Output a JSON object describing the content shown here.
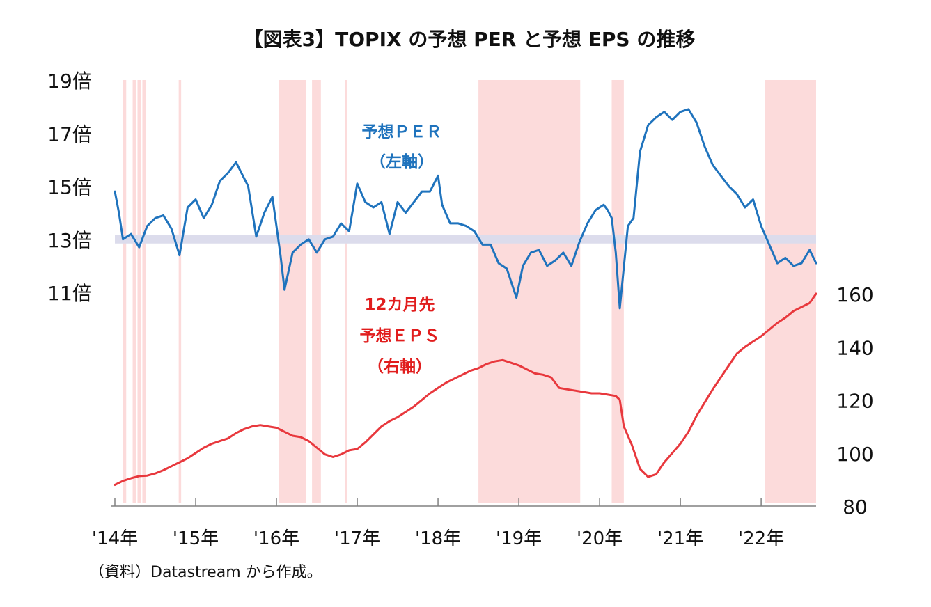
{
  "chart_data": {
    "type": "line",
    "title": "【図表3】TOPIX の予想 PER と予想 EPS の推移",
    "source_note": "（資料）Datastream から作成。",
    "x_tick_labels": [
      "'14年",
      "'15年",
      "'16年",
      "'17年",
      "'18年",
      "'19年",
      "'20年",
      "'21年",
      "'22年"
    ],
    "left_axis": {
      "ticks": [
        19,
        17,
        15,
        13,
        11
      ],
      "labels": [
        "19倍",
        "17倍",
        "15倍",
        "13倍",
        "11倍"
      ],
      "ylim": [
        11,
        19
      ],
      "reference_line": 13
    },
    "right_axis": {
      "ticks": [
        160,
        140,
        120,
        100,
        80
      ],
      "labels": [
        "160",
        "140",
        "120",
        "100",
        "80"
      ],
      "ylim": [
        80,
        160
      ]
    },
    "grid": false,
    "series": [
      {
        "name": "予想ＰＥＲ（左軸）",
        "label_lines": [
          "予想ＰＥＲ",
          "（左軸）"
        ],
        "axis": "left",
        "color": "#1f73bd",
        "x": [
          2014.0,
          2014.05,
          2014.1,
          2014.2,
          2014.3,
          2014.4,
          2014.5,
          2014.6,
          2014.7,
          2014.8,
          2014.9,
          2015.0,
          2015.1,
          2015.2,
          2015.3,
          2015.4,
          2015.5,
          2015.6,
          2015.65,
          2015.75,
          2015.85,
          2015.95,
          2016.05,
          2016.1,
          2016.2,
          2016.3,
          2016.4,
          2016.5,
          2016.6,
          2016.7,
          2016.8,
          2016.9,
          2017.0,
          2017.1,
          2017.2,
          2017.3,
          2017.4,
          2017.5,
          2017.6,
          2017.7,
          2017.8,
          2017.9,
          2018.0,
          2018.05,
          2018.15,
          2018.25,
          2018.35,
          2018.45,
          2018.55,
          2018.65,
          2018.75,
          2018.85,
          2018.97,
          2019.05,
          2019.15,
          2019.25,
          2019.35,
          2019.45,
          2019.55,
          2019.65,
          2019.75,
          2019.85,
          2019.95,
          2020.05,
          2020.1,
          2020.15,
          2020.2,
          2020.25,
          2020.35,
          2020.42,
          2020.5,
          2020.6,
          2020.7,
          2020.8,
          2020.9,
          2021.0,
          2021.1,
          2021.2,
          2021.3,
          2021.4,
          2021.5,
          2021.6,
          2021.7,
          2021.8,
          2021.9,
          2022.0,
          2022.1,
          2022.2,
          2022.3,
          2022.4,
          2022.5,
          2022.6,
          2022.68
        ],
        "values": [
          14.8,
          14.0,
          13.0,
          13.2,
          12.7,
          13.5,
          13.8,
          13.9,
          13.4,
          12.4,
          14.2,
          14.5,
          13.8,
          14.3,
          15.2,
          15.5,
          15.9,
          15.3,
          15.0,
          13.1,
          14.0,
          14.6,
          12.4,
          11.1,
          12.5,
          12.8,
          13.0,
          12.5,
          13.0,
          13.1,
          13.6,
          13.3,
          15.1,
          14.4,
          14.2,
          14.4,
          13.2,
          14.4,
          14.0,
          14.4,
          14.8,
          14.8,
          15.4,
          14.3,
          13.6,
          13.6,
          13.5,
          13.3,
          12.8,
          12.8,
          12.1,
          11.9,
          10.8,
          12.0,
          12.5,
          12.6,
          12.0,
          12.2,
          12.5,
          12.0,
          12.9,
          13.6,
          14.1,
          14.3,
          14.1,
          13.8,
          12.5,
          10.4,
          13.5,
          13.8,
          16.3,
          17.3,
          17.6,
          17.8,
          17.5,
          17.8,
          17.9,
          17.4,
          16.5,
          15.8,
          15.4,
          15.0,
          14.7,
          14.2,
          14.5,
          13.5,
          12.8,
          12.1,
          12.3,
          12.0,
          12.1,
          12.6,
          12.1
        ]
      },
      {
        "name": "12カ月先予想ＥＰＳ（右軸）",
        "label_lines": [
          "12カ月先",
          "予想ＥＰＳ",
          "（右軸）"
        ],
        "axis": "right",
        "color": "#e8383d",
        "x": [
          2014.0,
          2014.1,
          2014.2,
          2014.3,
          2014.4,
          2014.5,
          2014.6,
          2014.7,
          2014.8,
          2014.9,
          2015.0,
          2015.1,
          2015.2,
          2015.3,
          2015.4,
          2015.5,
          2015.6,
          2015.7,
          2015.8,
          2015.9,
          2016.0,
          2016.1,
          2016.2,
          2016.3,
          2016.4,
          2016.5,
          2016.6,
          2016.7,
          2016.8,
          2016.9,
          2017.0,
          2017.1,
          2017.2,
          2017.3,
          2017.4,
          2017.5,
          2017.6,
          2017.7,
          2017.8,
          2017.9,
          2018.0,
          2018.1,
          2018.2,
          2018.3,
          2018.4,
          2018.5,
          2018.6,
          2018.7,
          2018.8,
          2018.9,
          2019.0,
          2019.1,
          2019.2,
          2019.3,
          2019.4,
          2019.5,
          2019.6,
          2019.7,
          2019.8,
          2019.9,
          2020.0,
          2020.1,
          2020.2,
          2020.25,
          2020.3,
          2020.4,
          2020.5,
          2020.6,
          2020.7,
          2020.8,
          2020.9,
          2021.0,
          2021.1,
          2021.2,
          2021.3,
          2021.4,
          2021.5,
          2021.6,
          2021.7,
          2021.8,
          2021.9,
          2022.0,
          2022.1,
          2022.2,
          2022.3,
          2022.4,
          2022.5,
          2022.6,
          2022.68
        ],
        "values": [
          88,
          89.5,
          90.5,
          91.3,
          91.5,
          92.3,
          93.5,
          95,
          96.5,
          98,
          100,
          102,
          103.5,
          104.5,
          105.5,
          107.5,
          109,
          110,
          110.5,
          110,
          109.5,
          108,
          106.5,
          106,
          104.5,
          102,
          99.5,
          98.5,
          99.5,
          101,
          101.5,
          104,
          107,
          110,
          112,
          113.5,
          115.5,
          117.5,
          120,
          122.5,
          124.5,
          126.5,
          128,
          129.5,
          131,
          132,
          133.5,
          134.5,
          135,
          134,
          133,
          131.5,
          130,
          129.5,
          128.5,
          124.5,
          124,
          123.5,
          123,
          122.5,
          122.5,
          122,
          121.5,
          120,
          110,
          103,
          94,
          91,
          92,
          96.5,
          100,
          103.5,
          108,
          114,
          119,
          124,
          128.5,
          133,
          137.5,
          140,
          142,
          144,
          146.5,
          149,
          151,
          153.5,
          155,
          156.5,
          160
        ]
      }
    ],
    "highlight_bands": [
      {
        "color": "#fbd5d5",
        "spans": [
          [
            2014.1,
            2014.14
          ],
          [
            2014.22,
            2014.26
          ],
          [
            2014.28,
            2014.32
          ],
          [
            2014.34,
            2014.38
          ],
          [
            2014.79,
            2014.82
          ],
          [
            2016.03,
            2016.37
          ],
          [
            2016.44,
            2016.55
          ],
          [
            2016.85,
            2016.87
          ],
          [
            2018.5,
            2019.76
          ],
          [
            2020.15,
            2020.3
          ],
          [
            2022.05,
            2022.68
          ]
        ]
      }
    ]
  }
}
